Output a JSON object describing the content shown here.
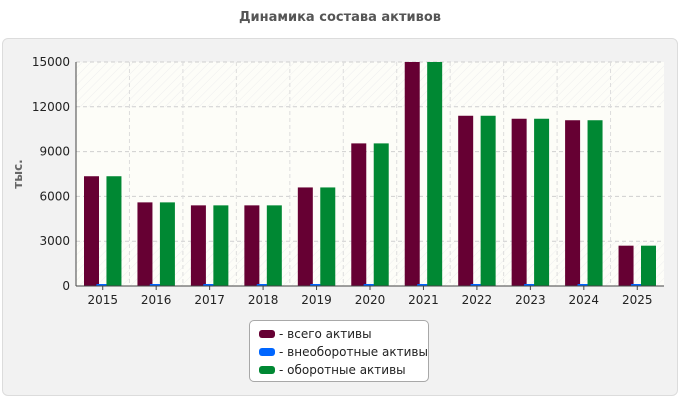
{
  "chart_data": {
    "type": "bar",
    "title": "Динамика состава активов",
    "ylabel": "тыс.",
    "xlabel": "",
    "categories": [
      "2015",
      "2016",
      "2017",
      "2018",
      "2019",
      "2020",
      "2021",
      "2022",
      "2023",
      "2024",
      "2025"
    ],
    "ylim": [
      0,
      15000
    ],
    "yticks": [
      0,
      3000,
      6000,
      9000,
      12000,
      15000
    ],
    "grid": true,
    "legend_position": "bottom",
    "series": [
      {
        "name": "- всего активы",
        "color": "#660033",
        "values": [
          7350,
          5600,
          5400,
          5400,
          6600,
          9550,
          15000,
          11400,
          11200,
          11100,
          2700
        ]
      },
      {
        "name": "- внеоборотные активы",
        "color": "#0066ff",
        "values": [
          60,
          60,
          60,
          60,
          60,
          60,
          60,
          60,
          60,
          60,
          60
        ]
      },
      {
        "name": "- оборотные активы",
        "color": "#008833",
        "values": [
          7350,
          5600,
          5400,
          5400,
          6600,
          9550,
          15000,
          11400,
          11200,
          11100,
          2700
        ]
      }
    ]
  }
}
